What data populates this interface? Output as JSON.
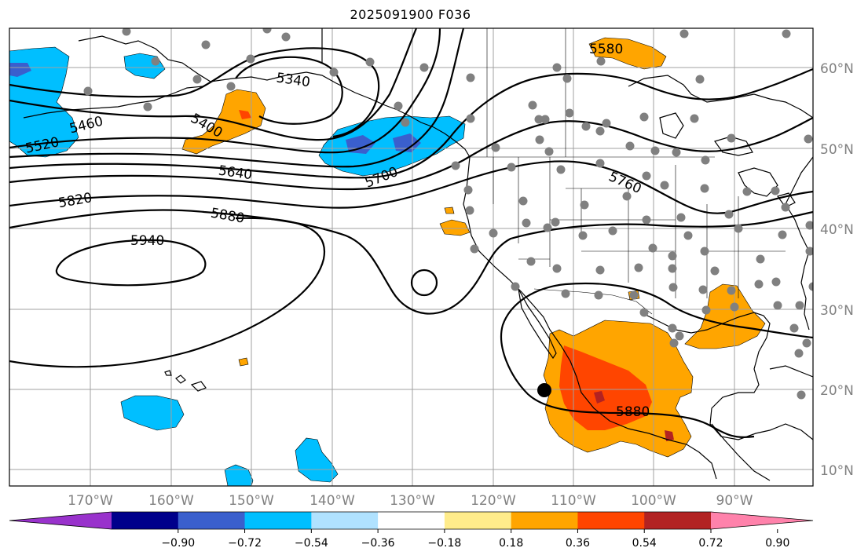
{
  "title": "2025091900 F036",
  "latitude_labels": [
    "60°N",
    "50°N",
    "40°N",
    "30°N",
    "20°N",
    "10°N"
  ],
  "longitude_labels": [
    "170°W",
    "160°W",
    "150°W",
    "140°W",
    "130°W",
    "120°W",
    "110°W",
    "100°W",
    "90°W"
  ],
  "contour_labels": [
    "5340",
    "5400",
    "5460",
    "5520",
    "5580",
    "5640",
    "5700",
    "5760",
    "5820",
    "5880",
    "5940",
    "5880"
  ],
  "colorbar": {
    "tick_labels": [
      "−0.90",
      "−0.72",
      "−0.54",
      "−0.36",
      "−0.18",
      "0.18",
      "0.36",
      "0.54",
      "0.72",
      "0.90"
    ],
    "colors": [
      "#9932cc",
      "#00008b",
      "#3a5fcd",
      "#00bfff",
      "#b0e2ff",
      "#ffffff",
      "#ffec8b",
      "#ffa500",
      "#ff4500",
      "#b22222",
      "#ff82ab"
    ]
  },
  "colors": {
    "grid": "#a0a0a0",
    "coast": "#000000",
    "station": "#808080",
    "marker": "#000000"
  }
}
